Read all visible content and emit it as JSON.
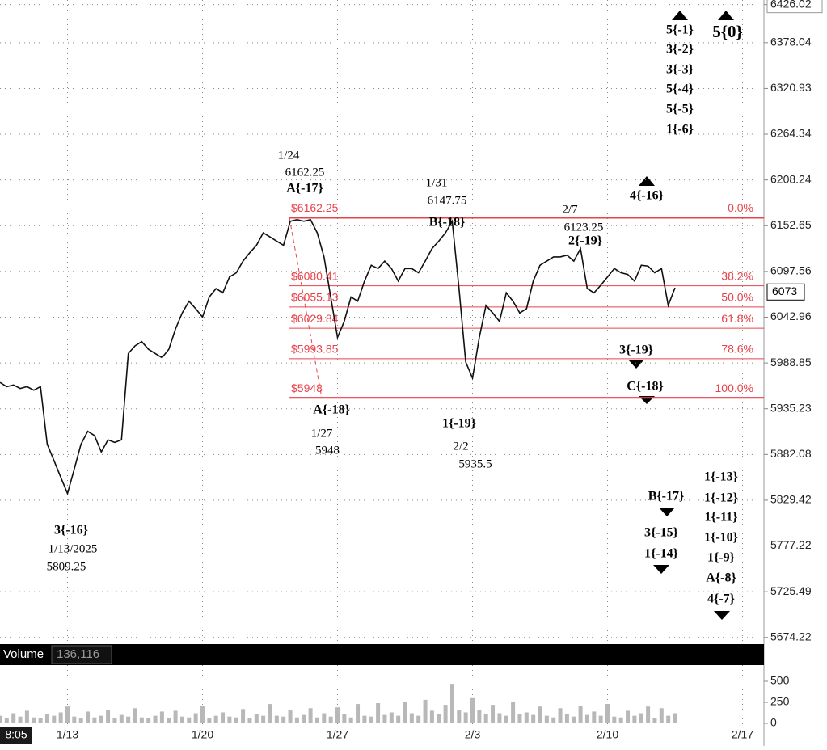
{
  "chart_data": {
    "type": "line",
    "log_scale": true,
    "grid": true,
    "color": "#111111",
    "categories": [
      null,
      null,
      "8:05",
      null,
      null,
      null,
      null,
      null,
      null,
      null,
      "1/13",
      null,
      null,
      null,
      null,
      null,
      null,
      null,
      null,
      null,
      null,
      null,
      null,
      null,
      null,
      null,
      null,
      null,
      null,
      null,
      "1/20",
      null,
      null,
      null,
      null,
      null,
      null,
      null,
      null,
      null,
      null,
      null,
      null,
      null,
      null,
      null,
      null,
      null,
      null,
      null,
      "1/27",
      null,
      null,
      null,
      null,
      null,
      null,
      null,
      null,
      null,
      null,
      null,
      null,
      null,
      null,
      null,
      null,
      null,
      null,
      null,
      "2/3",
      null,
      null,
      null,
      null,
      null,
      null,
      null,
      null,
      null,
      null,
      null,
      null,
      null,
      null,
      null,
      null,
      null,
      null,
      null,
      "2/10",
      null,
      null,
      null,
      null,
      null,
      null,
      null,
      null,
      null,
      null,
      null,
      null,
      null,
      null,
      null,
      null,
      null,
      null,
      null,
      "2/17",
      null,
      null,
      null
    ],
    "values": [
      5966,
      5961,
      5963,
      5959,
      5961,
      5957,
      5961,
      5894,
      5875,
      5856,
      5837,
      5865,
      5894,
      5909,
      5904,
      5885,
      5899,
      5896,
      5899,
      6000,
      6009,
      6014,
      6005,
      6000,
      5995,
      6005,
      6029,
      6048,
      6062,
      6053,
      6043,
      6067,
      6077,
      6072,
      6091,
      6096,
      6110,
      6120,
      6129,
      6144,
      6139,
      6134,
      6129,
      6158,
      6160,
      6158,
      6160,
      6144,
      6115,
      6067,
      6019,
      6038,
      6067,
      6062,
      6086,
      6105,
      6101,
      6110,
      6101,
      6086,
      6101,
      6101,
      6096,
      6110,
      6125,
      6134,
      6144,
      6158,
      6077,
      5990,
      5971,
      6019,
      6057,
      6048,
      6038,
      6072,
      6062,
      6048,
      6053,
      6086,
      6105,
      6110,
      6115,
      6115,
      6117,
      6110,
      6125,
      6077,
      6072,
      6081,
      6091,
      6101,
      6096,
      6094,
      6086,
      6105,
      6104,
      6096,
      6101,
      6057,
      6078,
      null,
      null,
      null,
      null,
      null,
      null,
      null,
      null,
      null,
      null,
      null,
      null,
      null
    ],
    "ylim": [
      5670.4,
      6431.8
    ],
    "yticks": [
      6426.02,
      6378.04,
      6320.93,
      6264.34,
      6208.24,
      6152.65,
      6097.56,
      6042.96,
      5988.85,
      5935.23,
      5882.08,
      5829.42,
      5777.22,
      5725.49,
      5674.22
    ],
    "last_price": 6073,
    "fib": {
      "values": [
        6162.25,
        6080.41,
        6055.13,
        6029.84,
        5993.85,
        5948
      ],
      "value_labels": [
        "$6162.25",
        "$6080.41",
        "$6055.13",
        "$6029.84",
        "$5993.85",
        "$5948"
      ],
      "ratios": [
        {
          "value": 0,
          "label": "0.0%"
        },
        {
          "value": 38.2,
          "label": "38.2%"
        },
        {
          "value": 50,
          "label": "50.0%"
        },
        {
          "value": 61.8,
          "label": "61.8%"
        },
        {
          "value": 78.6,
          "label": "78.6%"
        },
        {
          "value": 100,
          "label": "100.0%"
        }
      ],
      "color": "#e8434b"
    },
    "wave_labels": [
      "5{-1}",
      "3{-2}",
      "3{-3}",
      "5{-4}",
      "5{-5}",
      "1{-6}",
      "5{0}",
      "A{-17}",
      "B{-18}",
      "2{-19}",
      "4{-16}",
      "3{-19}",
      "C{-18}",
      "A{-18}",
      "1{-19}",
      "3{-16}",
      "B{-17}",
      "3{-15}",
      "1{-14}",
      "1{-13}",
      "1{-12}",
      "1{-11}",
      "1{-10}",
      "1{-9}",
      "A{-8}",
      "4{-7}"
    ],
    "notes": [
      "1/24",
      "6162.25",
      "1/31",
      "6147.75",
      "2/7",
      "6123.25",
      "1/27",
      "5948",
      "2/2",
      "5935.5",
      "1/13/2025",
      "5809.25"
    ],
    "volume": {
      "title": "Volume",
      "last": {
        "value": 136116,
        "label": "136,116"
      },
      "color": "#b8b8b8",
      "values": [
        90,
        60,
        120,
        80,
        150,
        70,
        60,
        110,
        90,
        130,
        200,
        80,
        60,
        140,
        70,
        90,
        160,
        60,
        100,
        80,
        180,
        70,
        60,
        90,
        140,
        60,
        150,
        80,
        70,
        120,
        210,
        60,
        90,
        130,
        80,
        70,
        170,
        60,
        110,
        90,
        230,
        90,
        80,
        160,
        70,
        100,
        180,
        70,
        120,
        80,
        190,
        110,
        70,
        230,
        90,
        80,
        240,
        100,
        130,
        90,
        260,
        120,
        90,
        280,
        150,
        110,
        220,
        470,
        160,
        130,
        300,
        160,
        110,
        220,
        120,
        90,
        260,
        110,
        130,
        100,
        200,
        90,
        70,
        180,
        110,
        80,
        210,
        100,
        140,
        90,
        230,
        80,
        70,
        150,
        90,
        120,
        200,
        60,
        180,
        90,
        120,
        null,
        null,
        null,
        null,
        null,
        null,
        null,
        null,
        null,
        null,
        null,
        null,
        null
      ],
      "ylim": [
        0,
        673
      ],
      "yticks": [
        0,
        250,
        500
      ]
    }
  }
}
